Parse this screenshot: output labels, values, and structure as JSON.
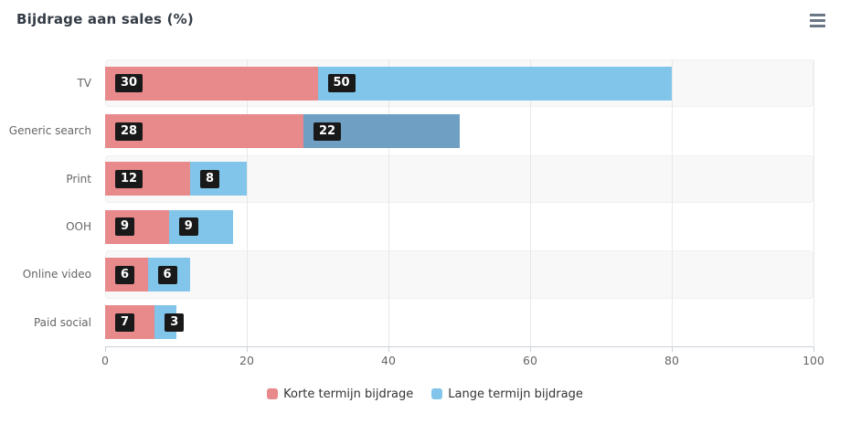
{
  "chart_data": {
    "type": "bar",
    "inverted": true,
    "stacked": true,
    "title": "Bijdrage aan sales (%)",
    "categories": [
      "TV",
      "Generic search",
      "Print",
      "OOH",
      "Online video",
      "Paid social"
    ],
    "series": [
      {
        "name": "Korte termijn bijdrage",
        "color": "#e8898b",
        "values": [
          30,
          28,
          12,
          9,
          6,
          7
        ]
      },
      {
        "name": "Lange termijn bijdrage",
        "color": "#81c5ea",
        "values": [
          50,
          22,
          8,
          9,
          6,
          3
        ],
        "point_colors": {
          "1": "#6f9fc3"
        }
      }
    ],
    "xlim": [
      0,
      100
    ],
    "x_ticks": [
      0,
      20,
      40,
      60,
      80,
      100
    ],
    "grid": true,
    "legend_position": "bottom",
    "alternating_row_bands": true,
    "data_labels": true,
    "styles": {
      "band_color": "#f8f8f8",
      "grid_color": "#e8e8e8",
      "axis_line_color": "#ccd2d8",
      "data_label_bg": "#191919",
      "data_label_fg": "#ffffff",
      "axis_text_color": "#666666",
      "title_color": "#333b45",
      "legend_text_color": "#333333",
      "menu_icon_color": "#6b7685"
    }
  },
  "menu": {
    "icon": "hamburger-menu"
  }
}
